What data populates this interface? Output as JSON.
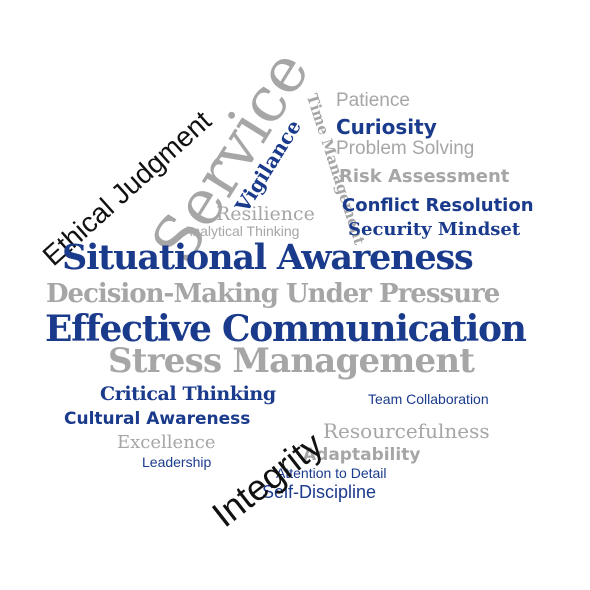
{
  "colors": {
    "navy": "#1a3a8c",
    "gray": "#a6a6a6",
    "black": "#111111"
  },
  "words": {
    "ethical_judgment": "Ethical Judgment",
    "service": "Service",
    "vigilance": "Vigilance",
    "time_management": "Time Management",
    "patience": "Patience",
    "curiosity": "Curiosity",
    "problem_solving": "Problem Solving",
    "risk_assessment": "Risk Assessment",
    "resilience": "Resilience",
    "conflict_resolution": "Conflict Resolution",
    "analytical_thinking": "Analytical Thinking",
    "security_mindset": "Security Mindset",
    "situational_awareness": "Situational Awareness",
    "decision_making": "Decision-Making Under Pressure",
    "effective_communication": "Effective Communication",
    "stress_management": "Stress Management",
    "critical_thinking": "Critical Thinking",
    "team_collaboration": "Team Collaboration",
    "integrity": "Integrity",
    "cultural_awareness": "Cultural Awareness",
    "resourcefulness": "Resourcefulness",
    "excellence": "Excellence",
    "adaptability": "Adaptability",
    "leadership": "Leadership",
    "attention_to_detail": "Attention to Detail",
    "self_discipline": "Self-Discipline"
  }
}
